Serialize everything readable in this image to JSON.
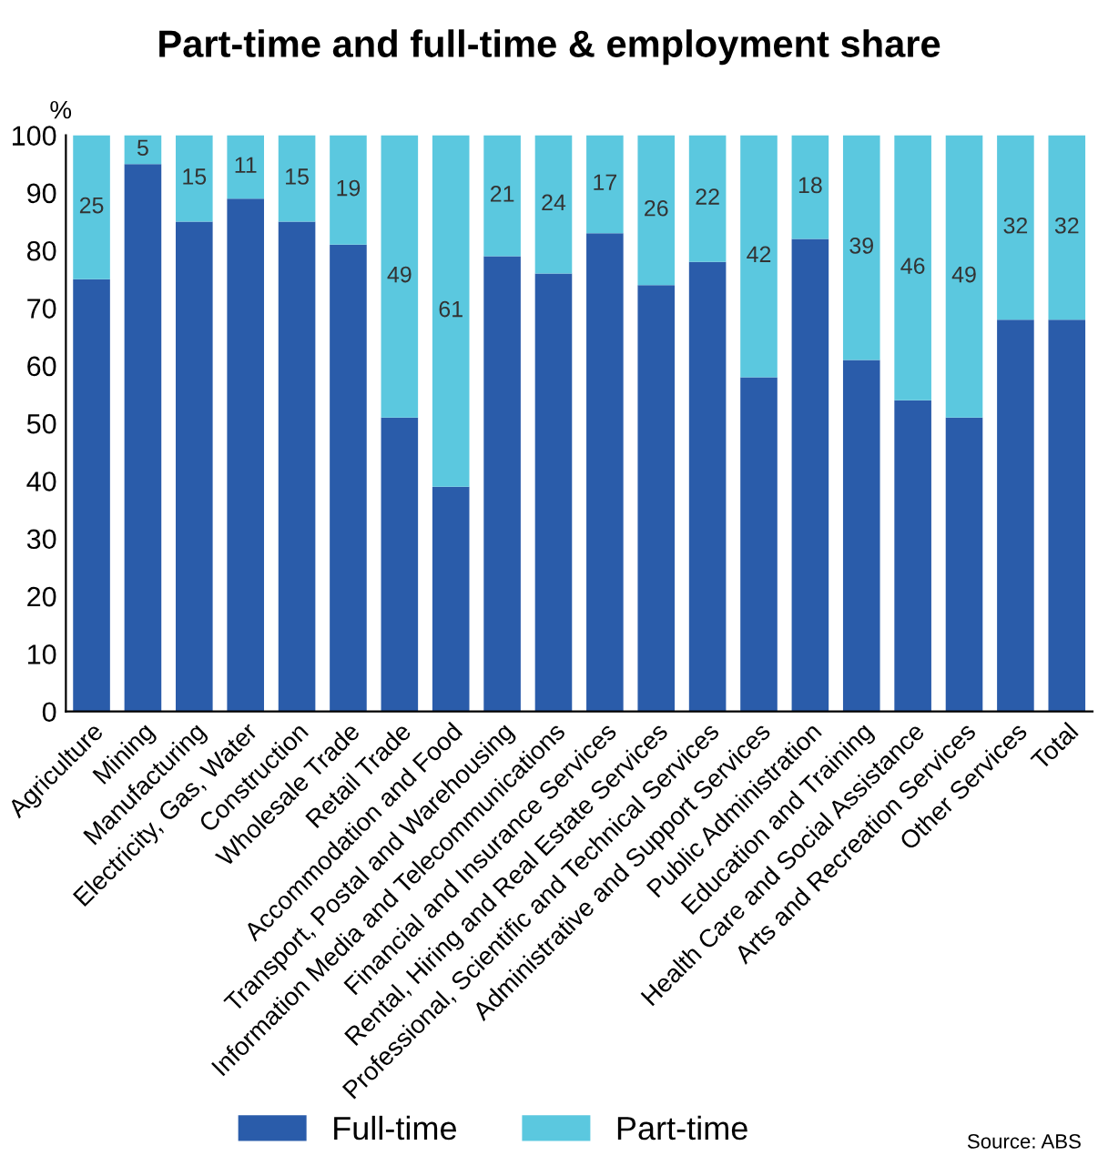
{
  "chart_data": {
    "type": "bar",
    "title": "Part-time and full-time & employment share",
    "ylabel": "%",
    "categories": [
      "Agriculture",
      "Mining",
      "Manufacturing",
      "Electricity, Gas, Water",
      "Construction",
      "Wholesale Trade",
      "Retail Trade",
      "Accommodation and Food",
      "Transport, Postal and Warehousing",
      "Information Media and Telecommunications",
      "Financial and Insurance Services",
      "Rental, Hiring and Real Estate Services",
      "Professional, Scientific and Technical Services",
      "Administrative and Support Services",
      "Public Administration",
      "Education and Training",
      "Health Care and Social Assistance",
      "Arts and Recreation Services",
      "Other Services",
      "Total"
    ],
    "stacked": true,
    "series": [
      {
        "name": "Full-time",
        "color": "#2a5caa",
        "values": [
          75,
          95,
          85,
          89,
          85,
          81,
          51,
          39,
          79,
          76,
          83,
          74,
          78,
          58,
          82,
          61,
          54,
          51,
          68,
          68
        ]
      },
      {
        "name": "Part-time",
        "color": "#5bc8df",
        "values": [
          25,
          5,
          15,
          11,
          15,
          19,
          49,
          61,
          21,
          24,
          17,
          26,
          22,
          42,
          18,
          39,
          46,
          49,
          32,
          32
        ],
        "value_labels": [
          "25",
          "5",
          "15",
          "11",
          "15",
          "19",
          "49",
          "61",
          "21",
          "24",
          "17",
          "26",
          "22",
          "42",
          "18",
          "39",
          "46",
          "49",
          "32",
          "32"
        ]
      }
    ],
    "ylim": [
      0,
      100
    ],
    "yticks": [
      0,
      10,
      20,
      30,
      40,
      50,
      60,
      70,
      80,
      90,
      100
    ],
    "grid": false,
    "legend": "bottom",
    "annotations": [
      "Source: ABS"
    ]
  }
}
